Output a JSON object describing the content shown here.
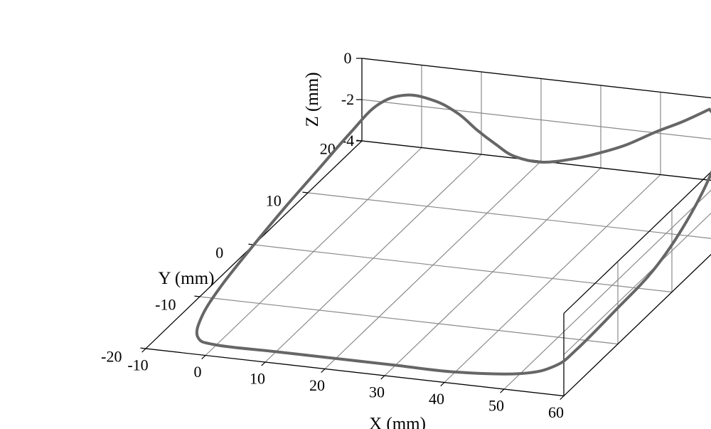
{
  "chart": {
    "type": "3d-line",
    "background_color": "#ffffff",
    "grid_color": "#8a8a8a",
    "axis_color": "#000000",
    "line_color": "#666666",
    "line_width": 4,
    "tick_fontsize": 22,
    "label_fontsize": 25,
    "axes": {
      "x": {
        "label": "X (mm)",
        "min": -10,
        "max": 60,
        "ticks": [
          -10,
          0,
          10,
          20,
          30,
          40,
          50,
          60
        ]
      },
      "y": {
        "label": "Y (mm)",
        "min": -20,
        "max": 20,
        "ticks": [
          -20,
          -10,
          0,
          10,
          20
        ]
      },
      "z": {
        "label": "Z (mm)",
        "min": -4,
        "max": 0,
        "ticks": [
          -4,
          -2,
          0
        ]
      }
    },
    "data": [
      {
        "x": 50,
        "y": 18,
        "z": 0.0
      },
      {
        "x": 54,
        "y": 16,
        "z": -0.4
      },
      {
        "x": 56,
        "y": 12,
        "z": -1.2
      },
      {
        "x": 57,
        "y": 6,
        "z": -2.2
      },
      {
        "x": 57,
        "y": 0,
        "z": -3.0
      },
      {
        "x": 56,
        "y": -6,
        "z": -3.5
      },
      {
        "x": 55,
        "y": -12,
        "z": -3.9
      },
      {
        "x": 54,
        "y": -15,
        "z": -4.0
      },
      {
        "x": 50,
        "y": -17,
        "z": -4.0
      },
      {
        "x": 40,
        "y": -18,
        "z": -4.0
      },
      {
        "x": 30,
        "y": -18,
        "z": -4.0
      },
      {
        "x": 20,
        "y": -18,
        "z": -4.0
      },
      {
        "x": 10,
        "y": -18,
        "z": -4.0
      },
      {
        "x": 0,
        "y": -18,
        "z": -4.0
      },
      {
        "x": -4,
        "y": -17,
        "z": -4.0
      },
      {
        "x": -6,
        "y": -14,
        "z": -3.8
      },
      {
        "x": -6.5,
        "y": -10,
        "z": -3.4
      },
      {
        "x": -6,
        "y": -5,
        "z": -2.8
      },
      {
        "x": -5,
        "y": 0,
        "z": -2.1
      },
      {
        "x": -4,
        "y": 5,
        "z": -1.5
      },
      {
        "x": -3,
        "y": 10,
        "z": -0.9
      },
      {
        "x": -2,
        "y": 14,
        "z": -0.5
      },
      {
        "x": 0,
        "y": 17,
        "z": -0.7
      },
      {
        "x": 4,
        "y": 18,
        "z": -1.1
      },
      {
        "x": 8,
        "y": 18,
        "z": -1.6
      },
      {
        "x": 12,
        "y": 17,
        "z": -2.0
      },
      {
        "x": 16,
        "y": 16,
        "z": -2.3
      },
      {
        "x": 20,
        "y": 15,
        "z": -2.5
      },
      {
        "x": 25,
        "y": 14.5,
        "z": -2.5
      },
      {
        "x": 30,
        "y": 15,
        "z": -2.3
      },
      {
        "x": 34,
        "y": 15.5,
        "z": -2.0
      },
      {
        "x": 38,
        "y": 16,
        "z": -1.6
      },
      {
        "x": 42,
        "y": 17,
        "z": -1.1
      },
      {
        "x": 46,
        "y": 17.5,
        "z": -0.6
      },
      {
        "x": 50,
        "y": 18,
        "z": 0.0
      }
    ]
  }
}
